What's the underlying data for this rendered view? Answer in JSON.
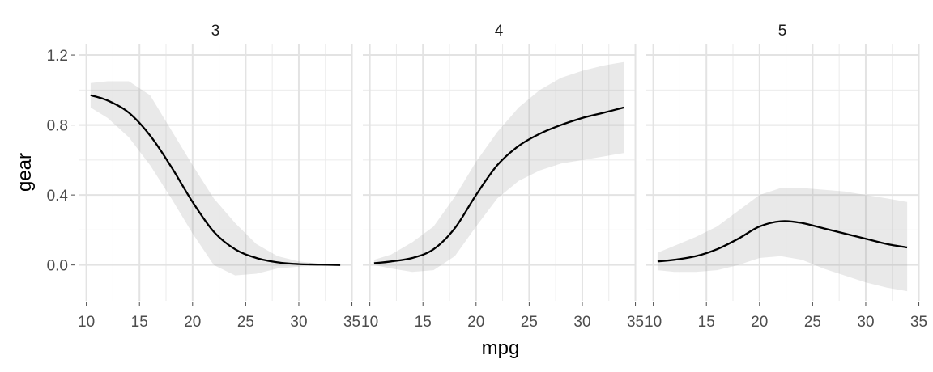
{
  "chart_data": {
    "type": "line",
    "xlabel": "mpg",
    "ylabel": "gear",
    "xlim": [
      10.4,
      33.9
    ],
    "ylim": [
      -0.2,
      1.2
    ],
    "xticks": [
      10,
      15,
      20,
      25,
      30,
      35
    ],
    "yticks": [
      0.0,
      0.4,
      0.8,
      1.2
    ],
    "ytick_labels": [
      "0.0",
      "0.4",
      "0.8",
      "1.2"
    ],
    "grid": true,
    "facets": [
      {
        "label": "3",
        "x": [
          10.4,
          12,
          14,
          16,
          18,
          20,
          22,
          24,
          26,
          28,
          30,
          32,
          33.9
        ],
        "y": [
          0.97,
          0.94,
          0.87,
          0.74,
          0.56,
          0.36,
          0.19,
          0.09,
          0.04,
          0.015,
          0.005,
          0.002,
          0.0
        ],
        "lower": [
          0.9,
          0.84,
          0.73,
          0.57,
          0.38,
          0.18,
          0.0,
          -0.06,
          -0.05,
          -0.02,
          -0.01,
          -0.003,
          0.0
        ],
        "upper": [
          1.04,
          1.05,
          1.05,
          0.97,
          0.77,
          0.57,
          0.38,
          0.24,
          0.12,
          0.05,
          0.02,
          0.007,
          0.0
        ]
      },
      {
        "label": "4",
        "x": [
          10.4,
          12,
          14,
          16,
          18,
          20,
          22,
          24,
          26,
          28,
          30,
          32,
          33.9
        ],
        "y": [
          0.01,
          0.02,
          0.04,
          0.09,
          0.21,
          0.4,
          0.57,
          0.68,
          0.75,
          0.8,
          0.84,
          0.87,
          0.9
        ],
        "lower": [
          0.0,
          -0.02,
          -0.04,
          -0.03,
          0.05,
          0.22,
          0.38,
          0.48,
          0.54,
          0.58,
          0.6,
          0.62,
          0.64
        ],
        "upper": [
          0.03,
          0.06,
          0.13,
          0.22,
          0.39,
          0.59,
          0.76,
          0.9,
          1.0,
          1.07,
          1.11,
          1.14,
          1.16
        ]
      },
      {
        "label": "5",
        "x": [
          10.4,
          12,
          14,
          16,
          18,
          20,
          22,
          24,
          26,
          28,
          30,
          32,
          33.9
        ],
        "y": [
          0.02,
          0.03,
          0.05,
          0.09,
          0.15,
          0.22,
          0.25,
          0.24,
          0.21,
          0.18,
          0.15,
          0.12,
          0.1
        ],
        "lower": [
          -0.03,
          -0.04,
          -0.04,
          -0.03,
          0.0,
          0.04,
          0.05,
          0.03,
          -0.02,
          -0.06,
          -0.1,
          -0.13,
          -0.15
        ],
        "upper": [
          0.07,
          0.11,
          0.16,
          0.22,
          0.31,
          0.4,
          0.44,
          0.44,
          0.43,
          0.42,
          0.4,
          0.38,
          0.36
        ]
      }
    ]
  }
}
